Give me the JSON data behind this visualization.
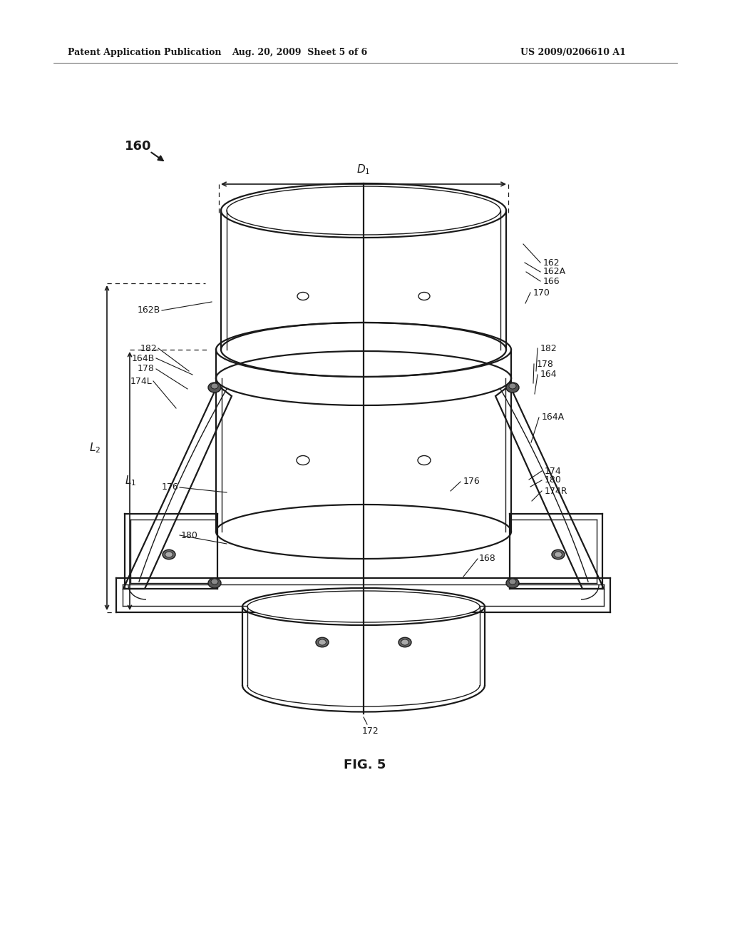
{
  "bg_color": "#ffffff",
  "lc": "#1a1a1a",
  "header_left": "Patent Application Publication",
  "header_center": "Aug. 20, 2009  Sheet 5 of 6",
  "header_right": "US 2009/0206610 A1",
  "fig_caption": "FIG. 5",
  "part_ref": "160"
}
